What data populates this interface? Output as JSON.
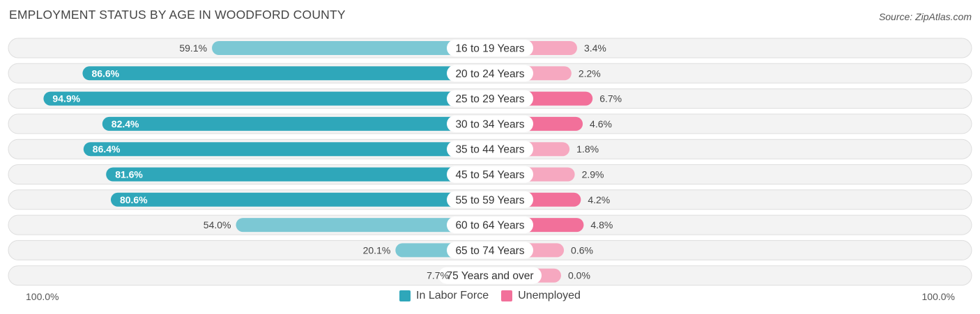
{
  "title": "EMPLOYMENT STATUS BY AGE IN WOODFORD COUNTY",
  "source": "Source: ZipAtlas.com",
  "colors": {
    "labor_strong": "#2fa7ba",
    "labor_light": "#7cc8d4",
    "unemp_strong": "#f2709a",
    "unemp_light": "#f6a8c0",
    "row_bg": "#f3f3f3",
    "row_border": "#dedede"
  },
  "axis": {
    "left_label": "100.0%",
    "right_label": "100.0%"
  },
  "legend": [
    {
      "label": "In Labor Force",
      "color": "#2fa7ba"
    },
    {
      "label": "Unemployed",
      "color": "#f2709a"
    }
  ],
  "chart_data": {
    "type": "bar",
    "orientation": "horizontal-diverging",
    "title": "EMPLOYMENT STATUS BY AGE IN WOODFORD COUNTY",
    "xlim": [
      -100,
      100
    ],
    "categories": [
      "16 to 19 Years",
      "20 to 24 Years",
      "25 to 29 Years",
      "30 to 34 Years",
      "35 to 44 Years",
      "45 to 54 Years",
      "55 to 59 Years",
      "60 to 64 Years",
      "65 to 74 Years",
      "75 Years and over"
    ],
    "series": [
      {
        "name": "In Labor Force",
        "values": [
          59.1,
          86.6,
          94.9,
          82.4,
          86.4,
          81.6,
          80.6,
          54.0,
          20.1,
          7.7
        ],
        "labels": [
          "59.1%",
          "86.6%",
          "94.9%",
          "82.4%",
          "86.4%",
          "81.6%",
          "80.6%",
          "54.0%",
          "20.1%",
          "7.7%"
        ]
      },
      {
        "name": "Unemployed",
        "values": [
          3.4,
          2.2,
          6.7,
          4.6,
          1.8,
          2.9,
          4.2,
          4.8,
          0.6,
          0.0
        ],
        "labels": [
          "3.4%",
          "2.2%",
          "6.7%",
          "4.6%",
          "1.8%",
          "2.9%",
          "4.2%",
          "4.8%",
          "0.6%",
          "0.0%"
        ]
      }
    ]
  }
}
